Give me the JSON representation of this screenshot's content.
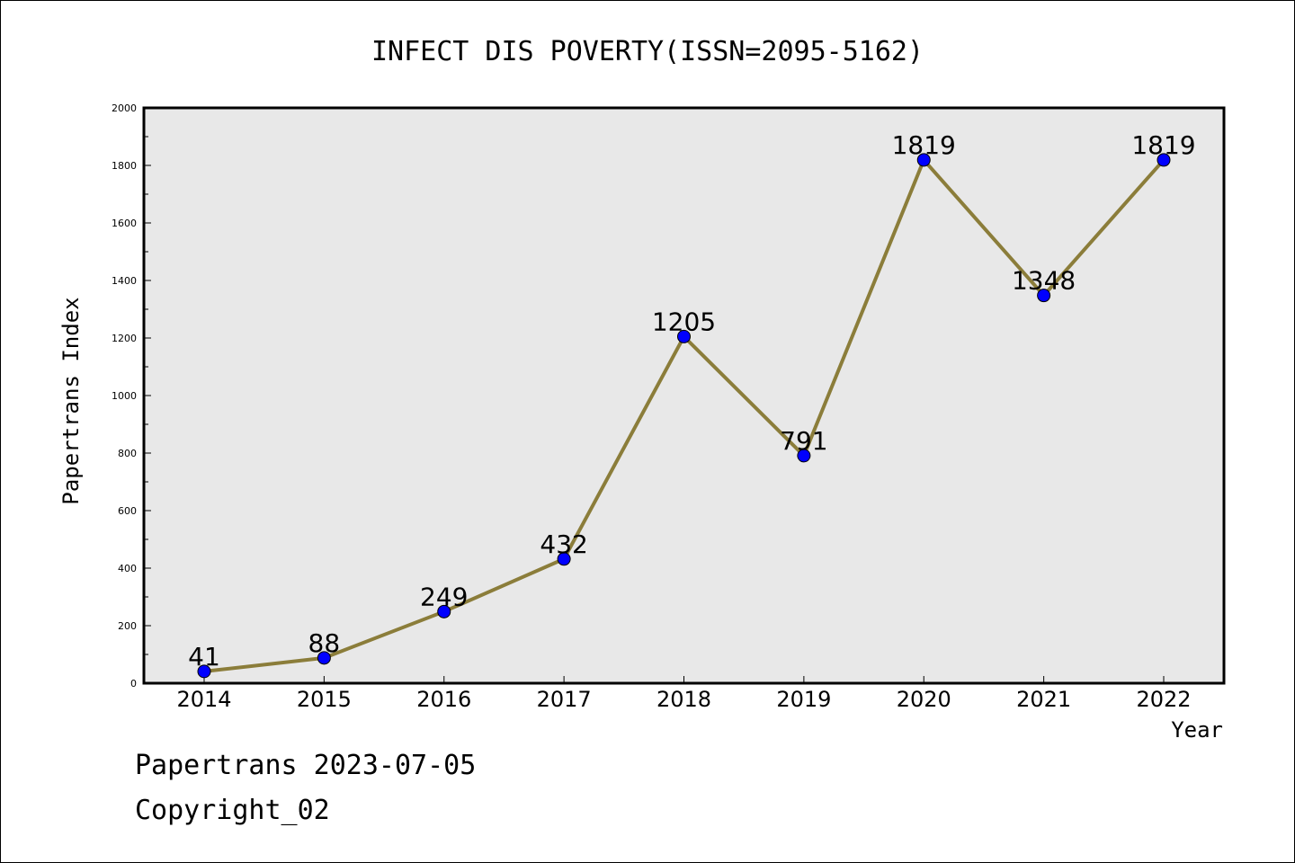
{
  "chart_data": {
    "type": "line",
    "title": "INFECT DIS POVERTY(ISSN=2095-5162)",
    "xlabel": "Year",
    "ylabel": "Papertrans Index",
    "categories": [
      "2014",
      "2015",
      "2016",
      "2017",
      "2018",
      "2019",
      "2020",
      "2021",
      "2022"
    ],
    "values": [
      41,
      88,
      249,
      432,
      1205,
      791,
      1819,
      1348,
      1819
    ],
    "data_labels": [
      "41",
      "88",
      "249",
      "432",
      "1205",
      "791",
      "1819",
      "1348",
      "1819"
    ],
    "ylim": [
      0,
      2000
    ],
    "yticks": [
      0,
      200,
      400,
      600,
      800,
      1000,
      1200,
      1400,
      1600,
      1800,
      2000
    ],
    "ytick_labels": [
      "0",
      "200",
      "400",
      "600",
      "800",
      "1000",
      "1200",
      "1400",
      "1600",
      "1800",
      "2000"
    ],
    "grid": false,
    "line_color": "#8b7d3a",
    "marker_color": "#0000ff",
    "plot_background": "#e8e8e8"
  },
  "footer": {
    "line1": "Papertrans 2023-07-05",
    "line2": "Copyright_02"
  }
}
